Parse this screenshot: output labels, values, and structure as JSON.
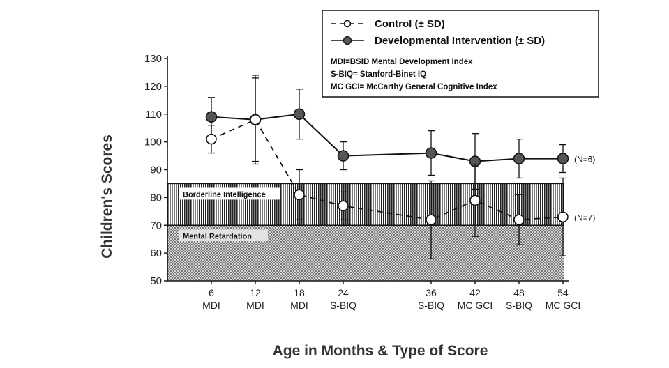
{
  "chart_data": {
    "type": "line",
    "ylabel": "Children's Scores",
    "xlabel": "Age in Months & Type of Score",
    "ylim": [
      50,
      130
    ],
    "yticks": [
      50,
      60,
      70,
      80,
      90,
      100,
      110,
      120,
      130
    ],
    "categories": [
      {
        "month": "6",
        "score": "MDI",
        "x": 6
      },
      {
        "month": "12",
        "score": "MDI",
        "x": 12
      },
      {
        "month": "18",
        "score": "MDI",
        "x": 18
      },
      {
        "month": "24",
        "score": "S-BIQ",
        "x": 24
      },
      {
        "month": "36",
        "score": "S-BIQ",
        "x": 36
      },
      {
        "month": "42",
        "score": "MC GCI",
        "x": 42
      },
      {
        "month": "48",
        "score": "S-BIQ",
        "x": 48
      },
      {
        "month": "54",
        "score": "MC GCI",
        "x": 54
      }
    ],
    "series": [
      {
        "name": "Control (± SD)",
        "style": "dashed-open",
        "n_label": "(N=7)",
        "values": [
          101,
          108,
          81,
          77,
          72,
          79,
          72,
          73
        ],
        "sd": [
          5,
          15,
          9,
          5,
          14,
          13,
          9,
          14
        ]
      },
      {
        "name": "Developmental Intervention (± SD)",
        "style": "solid-filled",
        "n_label": "(N=6)",
        "values": [
          109,
          108,
          110,
          95,
          96,
          93,
          94,
          94
        ],
        "sd": [
          7,
          16,
          9,
          5,
          8,
          10,
          7,
          5
        ]
      }
    ],
    "bands": [
      {
        "label": "Borderline Intelligence",
        "from": 70,
        "to": 85,
        "pattern": "vertical-lines"
      },
      {
        "label": "Mental Retardation",
        "from": 50,
        "to": 70,
        "pattern": "dots"
      }
    ],
    "legend": {
      "position": "top-right",
      "entries": [
        {
          "symbol": "-o-",
          "label": "Control (± SD)"
        },
        {
          "symbol": "-●-",
          "label": "Developmental Intervention (± SD)"
        }
      ],
      "notes": [
        "MDI=BSID Mental Development Index",
        "S-BIQ= Stanford-Binet IQ",
        "MC GCI= McCarthy General Cognitive Index"
      ]
    }
  },
  "colors": {
    "ink": "#1a1a1a",
    "filled_marker": "#555555",
    "band_ink": "#222222"
  }
}
